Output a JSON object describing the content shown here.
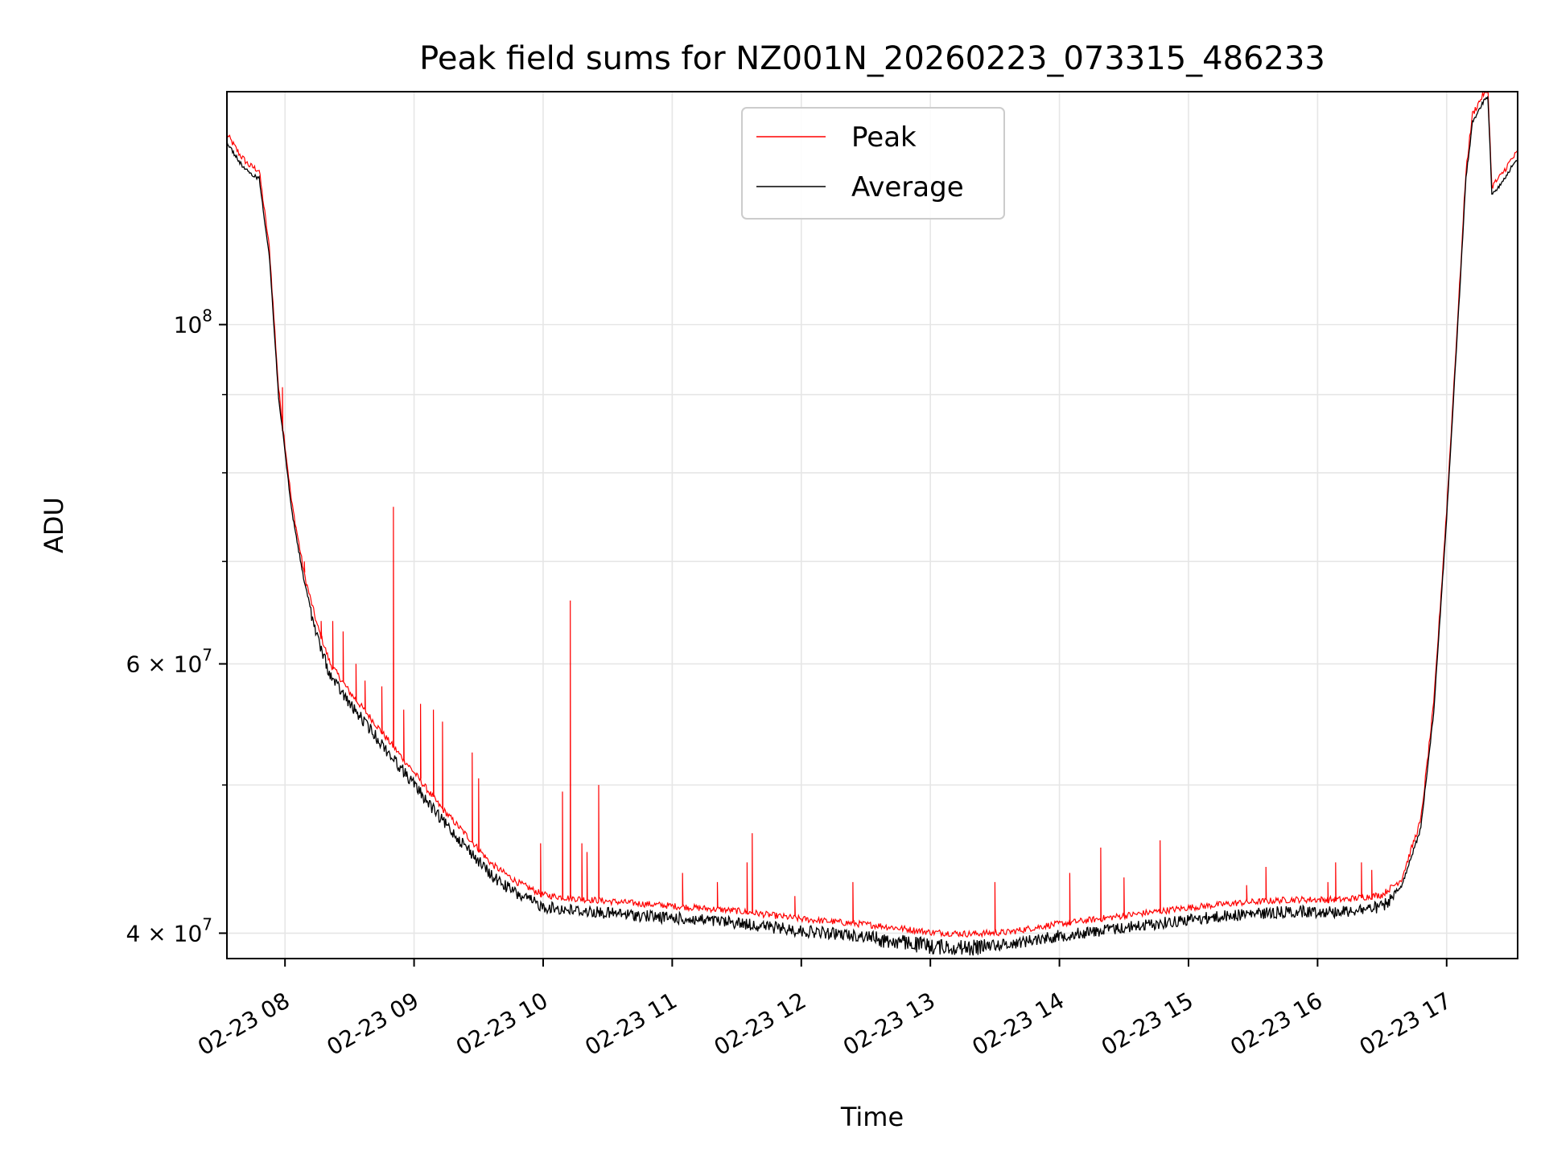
{
  "chart_data": {
    "type": "line",
    "title": "Peak field sums for NZ001N_20260223_073315_486233",
    "xlabel": "Time",
    "ylabel": "ADU",
    "yscale": "log",
    "xlim_hours": [
      7.55,
      17.55
    ],
    "ylim": [
      38500000,
      142000000
    ],
    "x_ticks": [
      {
        "hour": 8,
        "label": "02-23 08"
      },
      {
        "hour": 9,
        "label": "02-23 09"
      },
      {
        "hour": 10,
        "label": "02-23 10"
      },
      {
        "hour": 11,
        "label": "02-23 11"
      },
      {
        "hour": 12,
        "label": "02-23 12"
      },
      {
        "hour": 13,
        "label": "02-23 13"
      },
      {
        "hour": 14,
        "label": "02-23 14"
      },
      {
        "hour": 15,
        "label": "02-23 15"
      },
      {
        "hour": 16,
        "label": "02-23 16"
      },
      {
        "hour": 17,
        "label": "02-23 17"
      }
    ],
    "y_major_ticks": [
      {
        "value": 100000000,
        "label_base": "10",
        "label_exp": "8"
      },
      {
        "value": 60000000,
        "label_base": "6 × 10",
        "label_exp": "7"
      },
      {
        "value": 40000000,
        "label_base": "4 × 10",
        "label_exp": "7"
      }
    ],
    "y_minor_ticks": [
      50000000,
      70000000,
      80000000,
      90000000
    ],
    "grid": true,
    "legend": {
      "placement": "upper-center",
      "entries": [
        {
          "label": "Peak",
          "color": "#ff0000"
        },
        {
          "label": "Average",
          "color": "#000000"
        }
      ]
    },
    "series": [
      {
        "name": "Average",
        "color": "#000000",
        "x_hours": [
          7.55,
          7.65,
          7.72,
          7.8,
          7.88,
          7.95,
          8.05,
          8.15,
          8.25,
          8.35,
          8.5,
          8.65,
          8.8,
          9.0,
          9.2,
          9.4,
          9.6,
          9.8,
          10.0,
          10.2,
          10.5,
          11.0,
          11.5,
          12.0,
          12.3,
          12.6,
          13.0,
          13.3,
          13.6,
          13.9,
          14.2,
          14.6,
          15.0,
          15.4,
          15.8,
          16.2,
          16.5,
          16.65,
          16.8,
          16.9,
          17.0,
          17.1,
          17.15,
          17.2,
          17.3,
          17.32,
          17.35,
          17.42,
          17.5,
          17.55
        ],
        "values": [
          132000000,
          128000000,
          126000000,
          125000000,
          111000000,
          90000000,
          76000000,
          68000000,
          63000000,
          59500000,
          57000000,
          55000000,
          53000000,
          50500000,
          48000000,
          46000000,
          44000000,
          42800000,
          42000000,
          41800000,
          41600000,
          41300000,
          41000000,
          40500000,
          40300000,
          40100000,
          39700000,
          39600000,
          39700000,
          40100000,
          40400000,
          40800000,
          41200000,
          41500000,
          41700000,
          41700000,
          42000000,
          43000000,
          47000000,
          56000000,
          75000000,
          105000000,
          125000000,
          136000000,
          141000000,
          141500000,
          122000000,
          124000000,
          127000000,
          128500000
        ]
      },
      {
        "name": "Peak",
        "color": "#ff0000",
        "spikes": [
          {
            "hour": 7.98,
            "value": 91000000
          },
          {
            "hour": 8.08,
            "value": 74000000
          },
          {
            "hour": 8.15,
            "value": 70000000
          },
          {
            "hour": 8.28,
            "value": 64000000
          },
          {
            "hour": 8.37,
            "value": 64000000
          },
          {
            "hour": 8.45,
            "value": 63000000
          },
          {
            "hour": 8.55,
            "value": 60000000
          },
          {
            "hour": 8.62,
            "value": 58500000
          },
          {
            "hour": 8.75,
            "value": 58000000
          },
          {
            "hour": 8.84,
            "value": 76000000
          },
          {
            "hour": 8.92,
            "value": 56000000
          },
          {
            "hour": 9.05,
            "value": 56500000
          },
          {
            "hour": 9.15,
            "value": 56000000
          },
          {
            "hour": 9.22,
            "value": 55000000
          },
          {
            "hour": 9.45,
            "value": 52500000
          },
          {
            "hour": 9.5,
            "value": 50500000
          },
          {
            "hour": 9.98,
            "value": 45800000
          },
          {
            "hour": 10.15,
            "value": 49500000
          },
          {
            "hour": 10.21,
            "value": 66000000
          },
          {
            "hour": 10.3,
            "value": 45800000
          },
          {
            "hour": 10.34,
            "value": 45200000
          },
          {
            "hour": 10.43,
            "value": 50000000
          },
          {
            "hour": 11.08,
            "value": 43800000
          },
          {
            "hour": 11.35,
            "value": 43200000
          },
          {
            "hour": 11.58,
            "value": 44500000
          },
          {
            "hour": 11.62,
            "value": 46500000
          },
          {
            "hour": 11.95,
            "value": 42300000
          },
          {
            "hour": 12.4,
            "value": 43200000
          },
          {
            "hour": 13.5,
            "value": 43200000
          },
          {
            "hour": 14.08,
            "value": 43800000
          },
          {
            "hour": 14.32,
            "value": 45500000
          },
          {
            "hour": 14.5,
            "value": 43500000
          },
          {
            "hour": 14.78,
            "value": 46000000
          },
          {
            "hour": 15.45,
            "value": 43000000
          },
          {
            "hour": 15.6,
            "value": 44200000
          },
          {
            "hour": 16.08,
            "value": 43200000
          },
          {
            "hour": 16.14,
            "value": 44500000
          },
          {
            "hour": 16.34,
            "value": 44500000
          },
          {
            "hour": 16.42,
            "value": 44000000
          }
        ]
      }
    ]
  }
}
